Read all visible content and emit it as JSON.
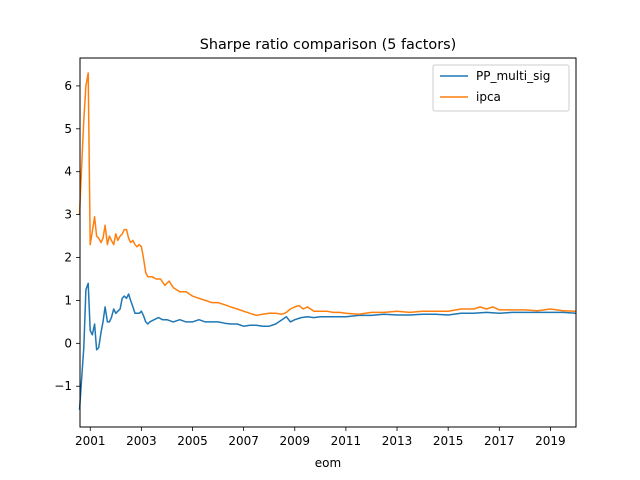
{
  "chart_data": {
    "type": "line",
    "title": "Sharpe ratio comparison (5 factors)",
    "xlabel": "eom",
    "ylabel": "",
    "xlim": [
      2000.6,
      2020.0
    ],
    "ylim": [
      -1.95,
      6.65
    ],
    "x_ticks": [
      2001,
      2003,
      2005,
      2007,
      2009,
      2011,
      2013,
      2015,
      2017,
      2019
    ],
    "x_tick_labels": [
      "2001",
      "2003",
      "2005",
      "2007",
      "2009",
      "2011",
      "2013",
      "2015",
      "2017",
      "2019"
    ],
    "y_ticks": [
      -1,
      0,
      1,
      2,
      3,
      4,
      5,
      6
    ],
    "y_tick_labels": [
      "−1",
      "0",
      "1",
      "2",
      "3",
      "4",
      "5",
      "6"
    ],
    "grid": false,
    "legend_position": "upper right",
    "series": [
      {
        "name": "PP_multi_sig",
        "color": "#1f77b4",
        "x": [
          2000.58,
          2000.75,
          2000.83,
          2000.92,
          2001.0,
          2001.08,
          2001.17,
          2001.25,
          2001.33,
          2001.42,
          2001.5,
          2001.58,
          2001.67,
          2001.75,
          2001.83,
          2001.92,
          2002.0,
          2002.08,
          2002.17,
          2002.25,
          2002.33,
          2002.42,
          2002.5,
          2002.58,
          2002.67,
          2002.75,
          2002.83,
          2002.92,
          2003.0,
          2003.08,
          2003.17,
          2003.25,
          2003.33,
          2003.5,
          2003.67,
          2003.83,
          2004.0,
          2004.25,
          2004.5,
          2004.75,
          2005.0,
          2005.25,
          2005.5,
          2005.75,
          2006.0,
          2006.25,
          2006.5,
          2006.75,
          2007.0,
          2007.25,
          2007.5,
          2007.75,
          2008.0,
          2008.25,
          2008.5,
          2008.67,
          2008.83,
          2009.0,
          2009.25,
          2009.5,
          2009.75,
          2010.0,
          2010.5,
          2011.0,
          2011.5,
          2012.0,
          2012.5,
          2013.0,
          2013.5,
          2014.0,
          2014.5,
          2015.0,
          2015.5,
          2016.0,
          2016.5,
          2017.0,
          2017.5,
          2018.0,
          2018.5,
          2019.0,
          2019.5,
          2020.0
        ],
        "values": [
          -1.55,
          -0.1,
          1.25,
          1.4,
          0.3,
          0.2,
          0.45,
          -0.15,
          -0.1,
          0.25,
          0.5,
          0.85,
          0.5,
          0.5,
          0.6,
          0.8,
          0.7,
          0.75,
          0.8,
          1.05,
          1.1,
          1.05,
          1.15,
          1.0,
          0.85,
          0.7,
          0.7,
          0.7,
          0.75,
          0.65,
          0.5,
          0.45,
          0.5,
          0.55,
          0.6,
          0.55,
          0.55,
          0.5,
          0.55,
          0.5,
          0.5,
          0.55,
          0.5,
          0.5,
          0.5,
          0.47,
          0.45,
          0.45,
          0.4,
          0.42,
          0.42,
          0.4,
          0.4,
          0.45,
          0.55,
          0.62,
          0.5,
          0.55,
          0.6,
          0.62,
          0.6,
          0.62,
          0.62,
          0.62,
          0.65,
          0.65,
          0.68,
          0.66,
          0.66,
          0.68,
          0.68,
          0.66,
          0.7,
          0.7,
          0.72,
          0.7,
          0.72,
          0.72,
          0.72,
          0.72,
          0.72,
          0.7
        ]
      },
      {
        "name": "ipca",
        "color": "#ff7f0e",
        "x": [
          2000.58,
          2000.67,
          2000.75,
          2000.83,
          2000.92,
          2001.0,
          2001.08,
          2001.17,
          2001.25,
          2001.33,
          2001.42,
          2001.5,
          2001.58,
          2001.67,
          2001.75,
          2001.83,
          2001.92,
          2002.0,
          2002.08,
          2002.17,
          2002.25,
          2002.33,
          2002.42,
          2002.5,
          2002.58,
          2002.67,
          2002.75,
          2002.83,
          2002.92,
          2003.0,
          2003.08,
          2003.17,
          2003.25,
          2003.42,
          2003.58,
          2003.75,
          2003.92,
          2004.08,
          2004.25,
          2004.5,
          2004.75,
          2005.0,
          2005.25,
          2005.5,
          2005.75,
          2006.0,
          2006.25,
          2006.5,
          2006.75,
          2007.0,
          2007.25,
          2007.5,
          2007.75,
          2008.0,
          2008.25,
          2008.5,
          2008.67,
          2008.83,
          2009.0,
          2009.17,
          2009.33,
          2009.5,
          2009.75,
          2010.0,
          2010.25,
          2010.5,
          2010.75,
          2011.0,
          2011.5,
          2012.0,
          2012.5,
          2013.0,
          2013.5,
          2014.0,
          2014.5,
          2015.0,
          2015.5,
          2016.0,
          2016.25,
          2016.5,
          2016.75,
          2017.0,
          2017.5,
          2018.0,
          2018.5,
          2019.0,
          2019.5,
          2020.0
        ],
        "values": [
          3.0,
          4.2,
          5.2,
          6.0,
          6.3,
          2.3,
          2.6,
          2.95,
          2.5,
          2.45,
          2.35,
          2.45,
          2.75,
          2.3,
          2.5,
          2.4,
          2.3,
          2.55,
          2.4,
          2.5,
          2.55,
          2.65,
          2.65,
          2.45,
          2.35,
          2.4,
          2.3,
          2.25,
          2.3,
          2.25,
          2.0,
          1.65,
          1.55,
          1.55,
          1.5,
          1.5,
          1.35,
          1.45,
          1.3,
          1.2,
          1.2,
          1.1,
          1.05,
          1.0,
          0.95,
          0.95,
          0.9,
          0.85,
          0.8,
          0.75,
          0.7,
          0.65,
          0.68,
          0.7,
          0.7,
          0.68,
          0.72,
          0.8,
          0.85,
          0.88,
          0.8,
          0.85,
          0.75,
          0.75,
          0.75,
          0.72,
          0.72,
          0.7,
          0.68,
          0.72,
          0.72,
          0.75,
          0.72,
          0.75,
          0.75,
          0.75,
          0.8,
          0.8,
          0.85,
          0.8,
          0.85,
          0.78,
          0.78,
          0.78,
          0.76,
          0.8,
          0.76,
          0.75
        ]
      }
    ]
  }
}
